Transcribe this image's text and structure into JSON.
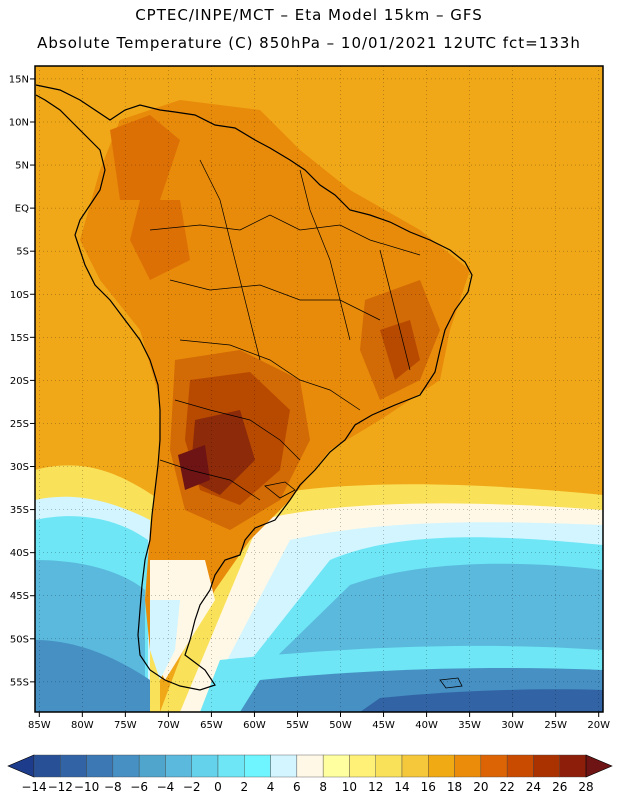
{
  "header": {
    "line1": "CPTEC/INPE/MCT –  Eta Model 15km – GFS",
    "line2": "Absolute Temperature (C) 850hPa – 10/01/2021 12UTC fct=133h"
  },
  "map": {
    "lon_labels": [
      "85W",
      "80W",
      "75W",
      "70W",
      "65W",
      "60W",
      "55W",
      "50W",
      "45W",
      "40W",
      "35W",
      "30W",
      "25W",
      "20W"
    ],
    "lat_labels": [
      "15N",
      "10N",
      "5N",
      "EQ",
      "5S",
      "10S",
      "15S",
      "20S",
      "25S",
      "30S",
      "35S",
      "40S",
      "45S",
      "50S",
      "55S"
    ],
    "lon_range": [
      -85.5,
      -19.5
    ],
    "lat_range": [
      -58.5,
      16.5
    ],
    "ocean_base_color": "#F0A818",
    "land_outline_color": "#000000"
  },
  "colorbar": {
    "labels": [
      "-14",
      "-12",
      "-10",
      "-8",
      "-6",
      "-4",
      "-2",
      "0",
      "2",
      "4",
      "6",
      "8",
      "10",
      "12",
      "14",
      "16",
      "18",
      "20",
      "22",
      "24",
      "26",
      "28"
    ],
    "colors": [
      "#1E3C8C",
      "#285096",
      "#3264A5",
      "#3C78B4",
      "#4690C3",
      "#50A5CD",
      "#5AB9DC",
      "#64D2EB",
      "#6EE6F5",
      "#6EF5FF",
      "#D2F5FF",
      "#FFF8E6",
      "#FFFFA0",
      "#FFF078",
      "#FAE15A",
      "#F5C83C",
      "#F0AA14",
      "#EB8C0A",
      "#DC6405",
      "#C84B00",
      "#AA3200",
      "#8C1E0A",
      "#6E1414"
    ]
  }
}
